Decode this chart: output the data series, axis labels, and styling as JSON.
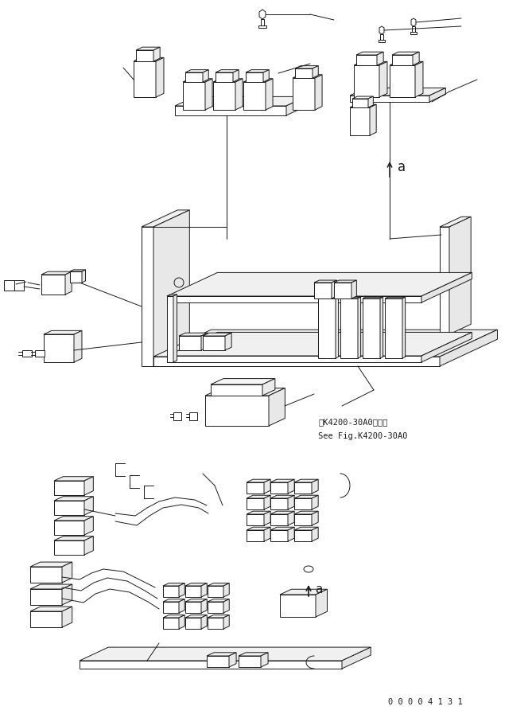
{
  "bg_color": "#ffffff",
  "line_color": "#1a1a1a",
  "line_width": 0.7,
  "fig_width": 6.69,
  "fig_height": 8.97,
  "annotation_text_1": "第K4200-30A0図参照",
  "annotation_text_2": "See Fig.K4200-30A0",
  "label_a": "a",
  "doc_number": "0 0 0 0 4 1 3 1"
}
